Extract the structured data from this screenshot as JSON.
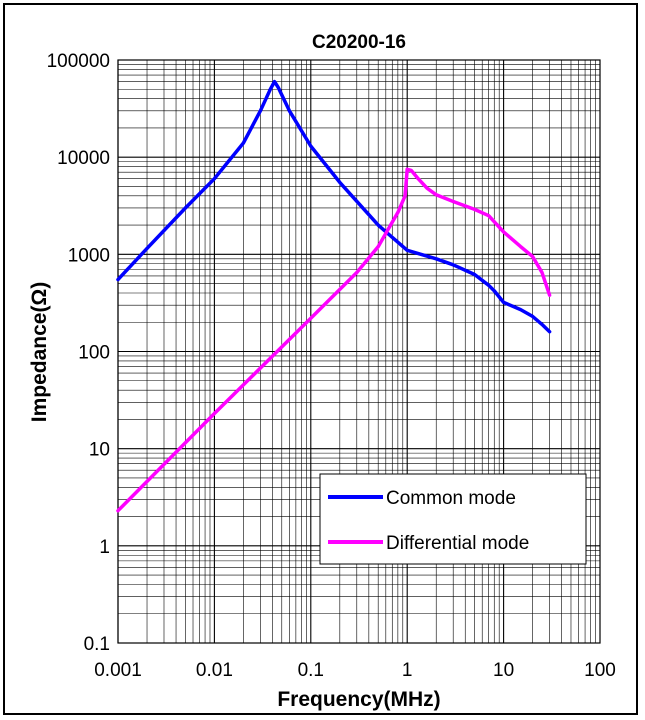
{
  "chart_data": {
    "type": "line",
    "title": "C20200-16",
    "xlabel": "Frequency(MHz)",
    "ylabel": "Impedance(Ω)",
    "x_scale": "log",
    "y_scale": "log",
    "xlim": [
      0.001,
      100
    ],
    "ylim": [
      0.1,
      100000
    ],
    "x_ticks": [
      "0.001",
      "0.01",
      "0.1",
      "1",
      "10",
      "100"
    ],
    "y_ticks": [
      "0.1",
      "1",
      "10",
      "100",
      "1000",
      "10000",
      "100000"
    ],
    "grid": true,
    "legend_position": "bottom-right",
    "series": [
      {
        "name": "Common mode",
        "color": "#0000ff",
        "x": [
          0.001,
          0.002,
          0.005,
          0.01,
          0.02,
          0.03,
          0.038,
          0.042,
          0.046,
          0.06,
          0.1,
          0.2,
          0.5,
          1,
          2,
          3,
          5,
          7,
          8,
          10,
          15,
          20,
          25,
          30
        ],
        "y": [
          550,
          1150,
          3000,
          6000,
          14000,
          30000,
          50000,
          60000,
          52000,
          30000,
          13000,
          5500,
          2000,
          1100,
          900,
          780,
          620,
          480,
          420,
          320,
          270,
          230,
          190,
          160
        ]
      },
      {
        "name": "Differential mode",
        "color": "#ff00ff",
        "x": [
          0.001,
          0.01,
          0.1,
          0.3,
          0.5,
          0.8,
          0.95,
          1.0,
          1.1,
          1.3,
          1.6,
          2,
          3,
          5,
          7,
          10,
          15,
          20,
          25,
          30
        ],
        "y": [
          2.3,
          23,
          220,
          650,
          1200,
          2700,
          4000,
          7500,
          7300,
          6000,
          4800,
          4100,
          3500,
          2900,
          2500,
          1700,
          1200,
          950,
          650,
          380
        ]
      }
    ]
  }
}
